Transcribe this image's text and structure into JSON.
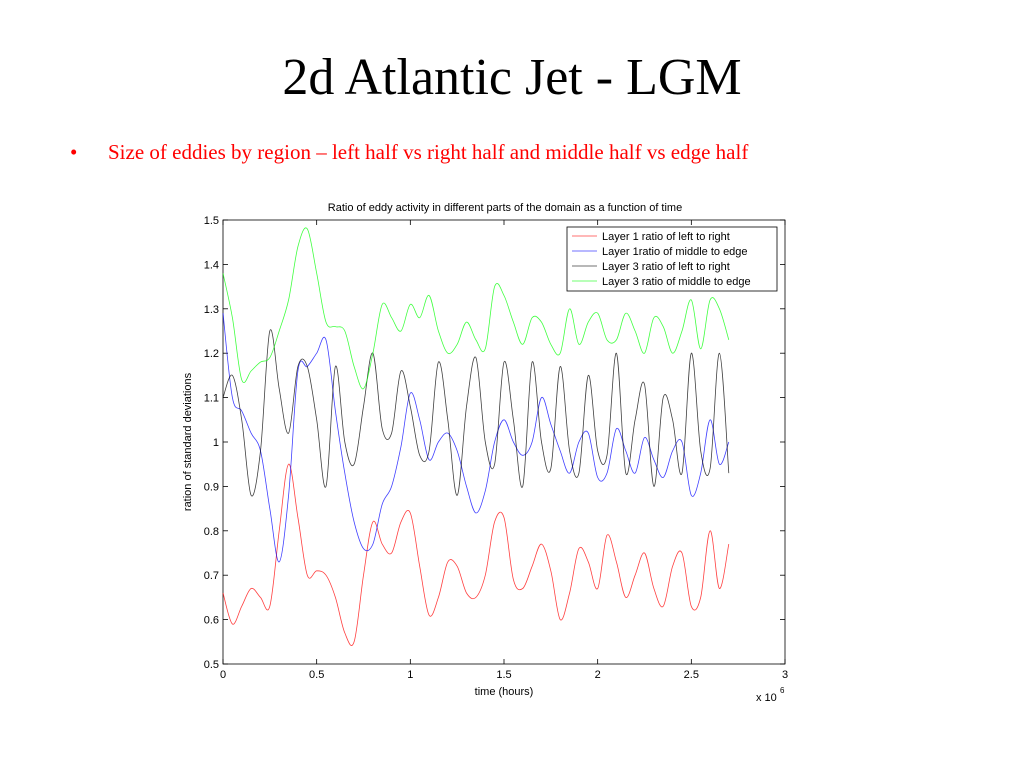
{
  "slide": {
    "title": "2d Atlantic Jet - LGM",
    "bullet_marker": "•",
    "bullet_text": "Size of eddies by region – left half vs right half and middle half vs edge half"
  },
  "chart_data": {
    "type": "line",
    "title": "Ratio of eddy activity in different parts of the domain as a function of time",
    "xlabel": "time (hours)",
    "ylabel": "ration of standard deviations",
    "x_multiplier": "x 10",
    "x_multiplier_exp": "6",
    "xlim": [
      0,
      3
    ],
    "ylim": [
      0.5,
      1.5
    ],
    "xticks": [
      0,
      0.5,
      1,
      1.5,
      2,
      2.5,
      3
    ],
    "xtick_labels": [
      "0",
      "0.5",
      "1",
      "1.5",
      "2",
      "2.5",
      "3"
    ],
    "yticks": [
      0.5,
      0.6,
      0.7,
      0.8,
      0.9,
      1.0,
      1.1,
      1.2,
      1.3,
      1.4,
      1.5
    ],
    "ytick_labels": [
      "0.5",
      "0.6",
      "0.7",
      "0.8",
      "0.9",
      "1",
      "1.1",
      "1.2",
      "1.3",
      "1.4",
      "1.5"
    ],
    "grid": false,
    "legend_position": "top-right",
    "series": [
      {
        "name": "Layer 1 ratio of left to right",
        "color": "#ff0000",
        "points": [
          [
            0,
            0.66
          ],
          [
            0.05,
            0.59
          ],
          [
            0.1,
            0.63
          ],
          [
            0.15,
            0.67
          ],
          [
            0.2,
            0.65
          ],
          [
            0.25,
            0.63
          ],
          [
            0.3,
            0.8
          ],
          [
            0.35,
            0.95
          ],
          [
            0.4,
            0.83
          ],
          [
            0.45,
            0.7
          ],
          [
            0.5,
            0.71
          ],
          [
            0.55,
            0.7
          ],
          [
            0.6,
            0.65
          ],
          [
            0.65,
            0.57
          ],
          [
            0.7,
            0.55
          ],
          [
            0.75,
            0.7
          ],
          [
            0.8,
            0.82
          ],
          [
            0.85,
            0.77
          ],
          [
            0.9,
            0.75
          ],
          [
            0.95,
            0.82
          ],
          [
            1.0,
            0.84
          ],
          [
            1.05,
            0.72
          ],
          [
            1.1,
            0.61
          ],
          [
            1.15,
            0.65
          ],
          [
            1.2,
            0.73
          ],
          [
            1.25,
            0.72
          ],
          [
            1.3,
            0.66
          ],
          [
            1.35,
            0.65
          ],
          [
            1.4,
            0.7
          ],
          [
            1.45,
            0.82
          ],
          [
            1.5,
            0.83
          ],
          [
            1.55,
            0.69
          ],
          [
            1.6,
            0.67
          ],
          [
            1.65,
            0.72
          ],
          [
            1.7,
            0.77
          ],
          [
            1.75,
            0.71
          ],
          [
            1.8,
            0.6
          ],
          [
            1.85,
            0.66
          ],
          [
            1.9,
            0.76
          ],
          [
            1.95,
            0.73
          ],
          [
            2.0,
            0.67
          ],
          [
            2.05,
            0.79
          ],
          [
            2.1,
            0.73
          ],
          [
            2.15,
            0.65
          ],
          [
            2.2,
            0.7
          ],
          [
            2.25,
            0.75
          ],
          [
            2.3,
            0.67
          ],
          [
            2.35,
            0.63
          ],
          [
            2.4,
            0.72
          ],
          [
            2.45,
            0.75
          ],
          [
            2.5,
            0.63
          ],
          [
            2.55,
            0.65
          ],
          [
            2.6,
            0.8
          ],
          [
            2.65,
            0.67
          ],
          [
            2.7,
            0.77
          ]
        ]
      },
      {
        "name": "Layer 1ratio of middle to edge",
        "color": "#0000ff",
        "points": [
          [
            0,
            1.29
          ],
          [
            0.05,
            1.1
          ],
          [
            0.1,
            1.07
          ],
          [
            0.15,
            1.02
          ],
          [
            0.2,
            0.98
          ],
          [
            0.25,
            0.85
          ],
          [
            0.3,
            0.73
          ],
          [
            0.35,
            0.88
          ],
          [
            0.4,
            1.16
          ],
          [
            0.45,
            1.17
          ],
          [
            0.5,
            1.2
          ],
          [
            0.55,
            1.23
          ],
          [
            0.6,
            1.07
          ],
          [
            0.65,
            0.93
          ],
          [
            0.7,
            0.82
          ],
          [
            0.75,
            0.76
          ],
          [
            0.8,
            0.77
          ],
          [
            0.85,
            0.86
          ],
          [
            0.9,
            0.9
          ],
          [
            0.95,
            0.99
          ],
          [
            1.0,
            1.11
          ],
          [
            1.05,
            1.05
          ],
          [
            1.1,
            0.96
          ],
          [
            1.15,
            1.0
          ],
          [
            1.2,
            1.02
          ],
          [
            1.25,
            0.98
          ],
          [
            1.3,
            0.9
          ],
          [
            1.35,
            0.84
          ],
          [
            1.4,
            0.89
          ],
          [
            1.45,
            1.0
          ],
          [
            1.5,
            1.05
          ],
          [
            1.55,
            1.0
          ],
          [
            1.6,
            0.97
          ],
          [
            1.65,
            1.0
          ],
          [
            1.7,
            1.1
          ],
          [
            1.75,
            1.04
          ],
          [
            1.8,
            0.98
          ],
          [
            1.85,
            0.93
          ],
          [
            1.9,
            1.0
          ],
          [
            1.95,
            1.02
          ],
          [
            2.0,
            0.92
          ],
          [
            2.05,
            0.93
          ],
          [
            2.1,
            1.03
          ],
          [
            2.15,
            0.98
          ],
          [
            2.2,
            0.93
          ],
          [
            2.25,
            1.01
          ],
          [
            2.3,
            0.96
          ],
          [
            2.35,
            0.92
          ],
          [
            2.4,
            0.98
          ],
          [
            2.45,
            1.0
          ],
          [
            2.5,
            0.88
          ],
          [
            2.55,
            0.93
          ],
          [
            2.6,
            1.05
          ],
          [
            2.65,
            0.95
          ],
          [
            2.7,
            1.0
          ]
        ]
      },
      {
        "name": "Layer 3 ratio of left to right",
        "color": "#000000",
        "points": [
          [
            0,
            1.1
          ],
          [
            0.05,
            1.15
          ],
          [
            0.1,
            1.05
          ],
          [
            0.15,
            0.88
          ],
          [
            0.2,
            0.98
          ],
          [
            0.25,
            1.25
          ],
          [
            0.3,
            1.12
          ],
          [
            0.35,
            1.02
          ],
          [
            0.4,
            1.17
          ],
          [
            0.45,
            1.17
          ],
          [
            0.5,
            1.05
          ],
          [
            0.55,
            0.9
          ],
          [
            0.6,
            1.17
          ],
          [
            0.65,
            1.0
          ],
          [
            0.7,
            0.95
          ],
          [
            0.75,
            1.08
          ],
          [
            0.8,
            1.2
          ],
          [
            0.85,
            1.03
          ],
          [
            0.9,
            1.02
          ],
          [
            0.95,
            1.16
          ],
          [
            1.0,
            1.08
          ],
          [
            1.05,
            0.97
          ],
          [
            1.1,
            0.98
          ],
          [
            1.15,
            1.18
          ],
          [
            1.2,
            1.05
          ],
          [
            1.25,
            0.88
          ],
          [
            1.3,
            1.08
          ],
          [
            1.35,
            1.19
          ],
          [
            1.4,
            1.0
          ],
          [
            1.45,
            0.95
          ],
          [
            1.5,
            1.18
          ],
          [
            1.55,
            1.05
          ],
          [
            1.6,
            0.9
          ],
          [
            1.65,
            1.18
          ],
          [
            1.7,
            1.0
          ],
          [
            1.75,
            0.94
          ],
          [
            1.8,
            1.17
          ],
          [
            1.85,
            0.98
          ],
          [
            1.9,
            0.93
          ],
          [
            1.95,
            1.15
          ],
          [
            2.0,
            0.98
          ],
          [
            2.05,
            0.97
          ],
          [
            2.1,
            1.2
          ],
          [
            2.15,
            0.93
          ],
          [
            2.2,
            1.05
          ],
          [
            2.25,
            1.13
          ],
          [
            2.3,
            0.9
          ],
          [
            2.35,
            1.1
          ],
          [
            2.4,
            1.05
          ],
          [
            2.45,
            0.93
          ],
          [
            2.5,
            1.2
          ],
          [
            2.55,
            0.98
          ],
          [
            2.6,
            0.94
          ],
          [
            2.65,
            1.2
          ],
          [
            2.7,
            0.93
          ]
        ]
      },
      {
        "name": "Layer 3 ratio of middle to edge",
        "color": "#00ff00",
        "points": [
          [
            0,
            1.38
          ],
          [
            0.05,
            1.28
          ],
          [
            0.1,
            1.14
          ],
          [
            0.15,
            1.16
          ],
          [
            0.2,
            1.18
          ],
          [
            0.25,
            1.19
          ],
          [
            0.3,
            1.25
          ],
          [
            0.35,
            1.32
          ],
          [
            0.4,
            1.44
          ],
          [
            0.45,
            1.48
          ],
          [
            0.5,
            1.38
          ],
          [
            0.55,
            1.27
          ],
          [
            0.6,
            1.26
          ],
          [
            0.65,
            1.25
          ],
          [
            0.7,
            1.17
          ],
          [
            0.75,
            1.12
          ],
          [
            0.8,
            1.2
          ],
          [
            0.85,
            1.31
          ],
          [
            0.9,
            1.28
          ],
          [
            0.95,
            1.25
          ],
          [
            1.0,
            1.31
          ],
          [
            1.05,
            1.28
          ],
          [
            1.1,
            1.33
          ],
          [
            1.15,
            1.25
          ],
          [
            1.2,
            1.2
          ],
          [
            1.25,
            1.22
          ],
          [
            1.3,
            1.27
          ],
          [
            1.35,
            1.23
          ],
          [
            1.4,
            1.21
          ],
          [
            1.45,
            1.35
          ],
          [
            1.5,
            1.33
          ],
          [
            1.55,
            1.27
          ],
          [
            1.6,
            1.22
          ],
          [
            1.65,
            1.28
          ],
          [
            1.7,
            1.27
          ],
          [
            1.75,
            1.22
          ],
          [
            1.8,
            1.2
          ],
          [
            1.85,
            1.3
          ],
          [
            1.9,
            1.22
          ],
          [
            1.95,
            1.27
          ],
          [
            2.0,
            1.29
          ],
          [
            2.05,
            1.23
          ],
          [
            2.1,
            1.23
          ],
          [
            2.15,
            1.29
          ],
          [
            2.2,
            1.25
          ],
          [
            2.25,
            1.2
          ],
          [
            2.3,
            1.28
          ],
          [
            2.35,
            1.26
          ],
          [
            2.4,
            1.2
          ],
          [
            2.45,
            1.25
          ],
          [
            2.5,
            1.32
          ],
          [
            2.55,
            1.21
          ],
          [
            2.6,
            1.32
          ],
          [
            2.65,
            1.3
          ],
          [
            2.7,
            1.23
          ]
        ]
      }
    ]
  }
}
